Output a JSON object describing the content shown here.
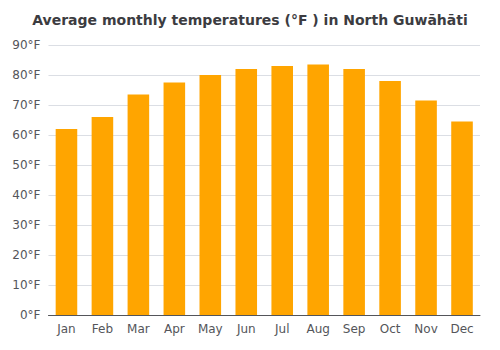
{
  "chart_data": {
    "type": "bar",
    "title": "Average monthly temperatures (°F ) in North Guwāhāti",
    "categories": [
      "Jan",
      "Feb",
      "Mar",
      "Apr",
      "May",
      "Jun",
      "Jul",
      "Aug",
      "Sep",
      "Oct",
      "Nov",
      "Dec"
    ],
    "values": [
      62,
      66,
      73.5,
      77.5,
      80,
      82,
      83,
      83.5,
      82,
      78,
      71.5,
      64.5
    ],
    "color": "#FFA500",
    "ylim": [
      0,
      90
    ],
    "yticks": [
      {
        "value": 0,
        "label": "0°F"
      },
      {
        "value": 10,
        "label": "10°F"
      },
      {
        "value": 20,
        "label": "20°F"
      },
      {
        "value": 30,
        "label": "30°F"
      },
      {
        "value": 40,
        "label": "40°F"
      },
      {
        "value": 50,
        "label": "50°F"
      },
      {
        "value": 60,
        "label": "60°F"
      },
      {
        "value": 70,
        "label": "70°F"
      },
      {
        "value": 80,
        "label": "80°F"
      },
      {
        "value": 90,
        "label": "90°F"
      }
    ],
    "grid": true
  }
}
